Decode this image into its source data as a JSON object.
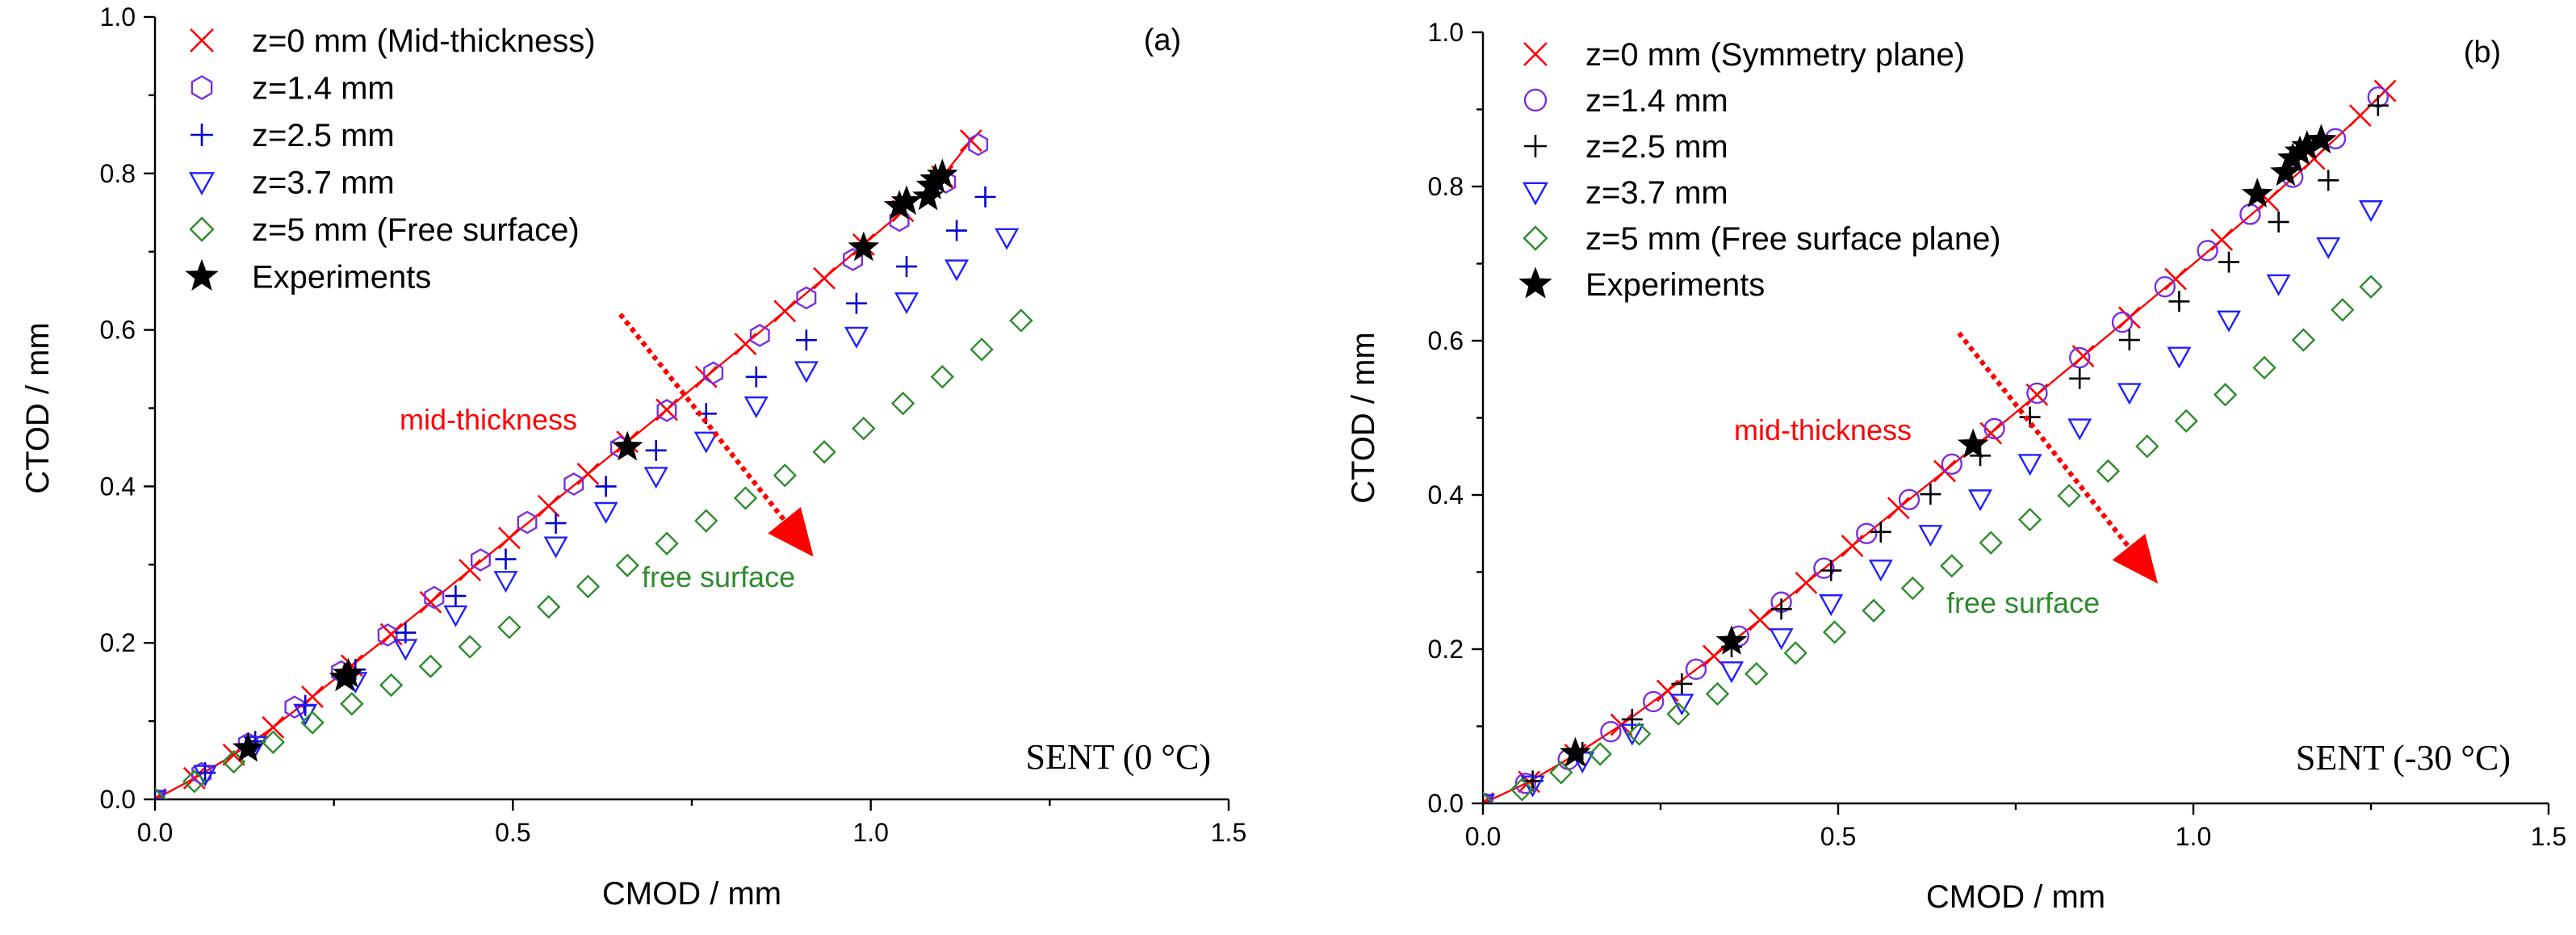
{
  "chart_data": [
    {
      "type": "scatter",
      "panel_label": "(a)",
      "condition_label": "SENT (0 °C)",
      "xlabel": "CMOD / mm",
      "ylabel": "CTOD / mm",
      "xlim": [
        0.0,
        1.5
      ],
      "ylim": [
        0.0,
        1.0
      ],
      "xticks": [
        "0.0",
        "0.5",
        "1.0",
        "1.5"
      ],
      "yticks": [
        "0.0",
        "0.2",
        "0.4",
        "0.6",
        "0.8",
        "1.0"
      ],
      "annotations": {
        "top": "mid-thickness",
        "bottom": "free surface"
      },
      "arrow_data": {
        "from": [
          0.65,
          0.62
        ],
        "to": [
          0.92,
          0.31
        ]
      },
      "series": [
        {
          "name": "z=0 mm (Mid-thickness)",
          "marker": "x",
          "color": "#ff0000",
          "line": true,
          "x": [
            0.0,
            0.055,
            0.11,
            0.165,
            0.22,
            0.275,
            0.33,
            0.385,
            0.44,
            0.495,
            0.55,
            0.605,
            0.66,
            0.715,
            0.77,
            0.825,
            0.88,
            0.935,
            0.99,
            1.045,
            1.1,
            1.14
          ],
          "y": [
            0.0,
            0.027,
            0.057,
            0.092,
            0.131,
            0.171,
            0.211,
            0.252,
            0.293,
            0.334,
            0.375,
            0.416,
            0.457,
            0.498,
            0.54,
            0.582,
            0.624,
            0.666,
            0.709,
            0.752,
            0.796,
            0.842
          ]
        },
        {
          "name": "z=1.4 mm",
          "marker": "hexagon",
          "color": "#7b2fe0",
          "x": [
            0.0,
            0.065,
            0.13,
            0.195,
            0.26,
            0.325,
            0.39,
            0.455,
            0.52,
            0.585,
            0.65,
            0.715,
            0.78,
            0.845,
            0.91,
            0.975,
            1.04,
            1.105,
            1.15
          ],
          "y": [
            0.0,
            0.033,
            0.071,
            0.118,
            0.163,
            0.21,
            0.258,
            0.306,
            0.354,
            0.403,
            0.45,
            0.497,
            0.545,
            0.593,
            0.641,
            0.69,
            0.74,
            0.789,
            0.837
          ]
        },
        {
          "name": "z=2.5 mm",
          "marker": "plus",
          "color": "#0000cc",
          "x": [
            0.0,
            0.07,
            0.14,
            0.21,
            0.28,
            0.35,
            0.42,
            0.49,
            0.56,
            0.63,
            0.7,
            0.77,
            0.84,
            0.91,
            0.98,
            1.05,
            1.12,
            1.16
          ],
          "y": [
            0.0,
            0.034,
            0.074,
            0.12,
            0.166,
            0.213,
            0.26,
            0.307,
            0.353,
            0.4,
            0.446,
            0.493,
            0.54,
            0.587,
            0.634,
            0.681,
            0.727,
            0.77
          ]
        },
        {
          "name": "z=3.7 mm",
          "marker": "triangle-down",
          "color": "#2020ff",
          "x": [
            0.0,
            0.07,
            0.14,
            0.21,
            0.28,
            0.35,
            0.42,
            0.49,
            0.56,
            0.63,
            0.7,
            0.77,
            0.84,
            0.91,
            0.98,
            1.05,
            1.12,
            1.19
          ],
          "y": [
            0.0,
            0.032,
            0.069,
            0.11,
            0.151,
            0.193,
            0.236,
            0.28,
            0.324,
            0.368,
            0.413,
            0.458,
            0.503,
            0.548,
            0.592,
            0.636,
            0.678,
            0.718
          ]
        },
        {
          "name": "z=5 mm (Free surface)",
          "marker": "diamond",
          "color": "#2e8b2e",
          "x": [
            0.0,
            0.055,
            0.11,
            0.165,
            0.22,
            0.275,
            0.33,
            0.385,
            0.44,
            0.495,
            0.55,
            0.605,
            0.66,
            0.715,
            0.77,
            0.825,
            0.88,
            0.935,
            0.99,
            1.045,
            1.1,
            1.155,
            1.21
          ],
          "y": [
            0.0,
            0.023,
            0.048,
            0.073,
            0.098,
            0.122,
            0.146,
            0.17,
            0.195,
            0.22,
            0.246,
            0.272,
            0.299,
            0.327,
            0.356,
            0.385,
            0.414,
            0.444,
            0.474,
            0.506,
            0.54,
            0.575,
            0.612
          ]
        },
        {
          "name": "Experiments",
          "marker": "star",
          "color": "#000000",
          "x": [
            0.13,
            0.265,
            0.27,
            0.66,
            0.99,
            1.04,
            1.05,
            1.08,
            1.085,
            1.09,
            1.1
          ],
          "y": [
            0.065,
            0.155,
            0.16,
            0.45,
            0.705,
            0.758,
            0.764,
            0.77,
            0.784,
            0.792,
            0.798
          ]
        }
      ]
    },
    {
      "type": "scatter",
      "panel_label": "(b)",
      "condition_label": "SENT (-30 °C)",
      "xlabel": "CMOD / mm",
      "ylabel": "CTOD / mm",
      "xlim": [
        0.0,
        1.5
      ],
      "ylim": [
        0.0,
        1.0
      ],
      "xticks": [
        "0.0",
        "0.5",
        "1.0",
        "1.5"
      ],
      "yticks": [
        "0.0",
        "0.2",
        "0.4",
        "0.6",
        "0.8",
        "1.0"
      ],
      "annotations": {
        "top": "mid-thickness",
        "bottom": "free surface"
      },
      "arrow_data": {
        "from": [
          0.67,
          0.61
        ],
        "to": [
          0.95,
          0.285
        ]
      },
      "series": [
        {
          "name": "z=0 mm (Symmetry plane)",
          "marker": "x",
          "color": "#ff0000",
          "line": true,
          "x": [
            0.0,
            0.065,
            0.13,
            0.195,
            0.26,
            0.325,
            0.39,
            0.455,
            0.52,
            0.585,
            0.65,
            0.715,
            0.78,
            0.845,
            0.91,
            0.975,
            1.04,
            1.105,
            1.17,
            1.235,
            1.27
          ],
          "y": [
            0.0,
            0.028,
            0.063,
            0.102,
            0.146,
            0.191,
            0.238,
            0.286,
            0.334,
            0.383,
            0.431,
            0.48,
            0.53,
            0.58,
            0.63,
            0.68,
            0.731,
            0.782,
            0.836,
            0.892,
            0.924
          ]
        },
        {
          "name": "z=1.4 mm",
          "marker": "circle",
          "color": "#7b2fe0",
          "x": [
            0.0,
            0.06,
            0.12,
            0.18,
            0.24,
            0.3,
            0.36,
            0.42,
            0.48,
            0.54,
            0.6,
            0.66,
            0.72,
            0.78,
            0.84,
            0.9,
            0.96,
            1.02,
            1.08,
            1.14,
            1.2,
            1.26
          ],
          "y": [
            0.0,
            0.026,
            0.057,
            0.093,
            0.132,
            0.174,
            0.217,
            0.261,
            0.305,
            0.35,
            0.394,
            0.44,
            0.486,
            0.532,
            0.578,
            0.624,
            0.67,
            0.717,
            0.764,
            0.812,
            0.862,
            0.916
          ]
        },
        {
          "name": "z=2.5 mm",
          "marker": "plus",
          "color": "#000000",
          "x": [
            0.0,
            0.07,
            0.14,
            0.21,
            0.28,
            0.35,
            0.42,
            0.49,
            0.56,
            0.63,
            0.7,
            0.77,
            0.84,
            0.91,
            0.98,
            1.05,
            1.12,
            1.19,
            1.26
          ],
          "y": [
            0.0,
            0.029,
            0.066,
            0.109,
            0.155,
            0.203,
            0.252,
            0.302,
            0.352,
            0.401,
            0.451,
            0.501,
            0.551,
            0.601,
            0.651,
            0.702,
            0.754,
            0.808,
            0.905
          ]
        },
        {
          "name": "z=3.7 mm",
          "marker": "triangle-down",
          "color": "#2020ff",
          "x": [
            0.0,
            0.07,
            0.14,
            0.21,
            0.28,
            0.35,
            0.42,
            0.49,
            0.56,
            0.63,
            0.7,
            0.77,
            0.84,
            0.91,
            0.98,
            1.05,
            1.12,
            1.19,
            1.25
          ],
          "y": [
            0.0,
            0.024,
            0.055,
            0.091,
            0.13,
            0.172,
            0.215,
            0.259,
            0.304,
            0.349,
            0.395,
            0.441,
            0.487,
            0.533,
            0.58,
            0.627,
            0.674,
            0.722,
            0.77
          ]
        },
        {
          "name": "z=5 mm (Free surface plane)",
          "marker": "diamond",
          "color": "#2e8b2e",
          "x": [
            0.0,
            0.055,
            0.11,
            0.165,
            0.22,
            0.275,
            0.33,
            0.385,
            0.44,
            0.495,
            0.55,
            0.605,
            0.66,
            0.715,
            0.77,
            0.825,
            0.88,
            0.935,
            0.99,
            1.045,
            1.1,
            1.155,
            1.21,
            1.25
          ],
          "y": [
            0.0,
            0.018,
            0.04,
            0.064,
            0.09,
            0.116,
            0.142,
            0.168,
            0.195,
            0.222,
            0.25,
            0.279,
            0.308,
            0.338,
            0.368,
            0.399,
            0.431,
            0.463,
            0.496,
            0.53,
            0.565,
            0.601,
            0.64,
            0.67
          ]
        },
        {
          "name": "Experiments",
          "marker": "star",
          "color": "#000000",
          "x": [
            0.13,
            0.35,
            0.69,
            1.09,
            1.13,
            1.14,
            1.15,
            1.16,
            1.18
          ],
          "y": [
            0.065,
            0.21,
            0.465,
            0.79,
            0.818,
            0.836,
            0.845,
            0.852,
            0.86
          ]
        }
      ]
    }
  ]
}
